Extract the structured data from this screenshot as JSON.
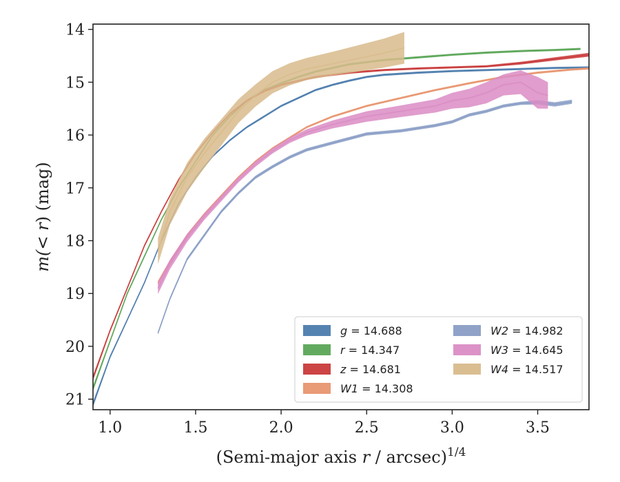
{
  "chart_data": {
    "type": "line",
    "xlabel_main": "(Semi-major axis ",
    "xlabel_var": "r",
    "xlabel_tail": " / arcsec)",
    "xlabel_sup": "1/4",
    "ylabel_pre": "m(",
    "ylabel_var": "< r",
    "ylabel_post": ") (mag)",
    "xlim": [
      0.9,
      3.8
    ],
    "ylim": [
      21.2,
      13.9
    ],
    "y_inverted": true,
    "xticks": [
      1.0,
      1.5,
      2.0,
      2.5,
      3.0,
      3.5
    ],
    "xtick_labels": [
      "1.0",
      "1.5",
      "2.0",
      "2.5",
      "3.0",
      "3.5"
    ],
    "yticks": [
      14,
      15,
      16,
      17,
      18,
      19,
      20,
      21
    ],
    "ytick_labels": [
      "14",
      "15",
      "16",
      "17",
      "18",
      "19",
      "20",
      "21"
    ],
    "grid": false,
    "legend_position": "lower-right",
    "legend_columns": 2,
    "series": [
      {
        "name": "g",
        "legend_var": "g",
        "legend_value": "= 14.688",
        "color": "#4c7cad",
        "x": [
          0.9,
          1.0,
          1.1,
          1.2,
          1.3,
          1.4,
          1.5,
          1.6,
          1.7,
          1.8,
          1.9,
          2.0,
          2.1,
          2.2,
          2.3,
          2.4,
          2.5,
          2.6,
          2.8,
          3.0,
          3.2,
          3.4,
          3.6,
          3.8
        ],
        "y": [
          21.1,
          20.2,
          19.5,
          18.8,
          18.0,
          17.3,
          16.8,
          16.4,
          16.1,
          15.85,
          15.65,
          15.45,
          15.3,
          15.15,
          15.05,
          14.97,
          14.9,
          14.86,
          14.82,
          14.79,
          14.77,
          14.75,
          14.73,
          14.72
        ],
        "width": [
          0.1,
          0.06,
          0.05,
          0.05,
          0.04,
          0.04,
          0.04,
          0.04,
          0.04,
          0.04,
          0.04,
          0.04,
          0.04,
          0.04,
          0.04,
          0.04,
          0.04,
          0.04,
          0.04,
          0.04,
          0.04,
          0.04,
          0.04,
          0.04
        ]
      },
      {
        "name": "r",
        "legend_var": "r",
        "legend_value": "= 14.347",
        "color": "#5aa556",
        "x": [
          0.9,
          1.0,
          1.1,
          1.2,
          1.3,
          1.4,
          1.5,
          1.6,
          1.7,
          1.8,
          1.9,
          2.0,
          2.1,
          2.2,
          2.4,
          2.6,
          2.8,
          3.0,
          3.2,
          3.4,
          3.6,
          3.75
        ],
        "y": [
          20.8,
          19.9,
          19.0,
          18.3,
          17.6,
          17.0,
          16.5,
          16.0,
          15.65,
          15.35,
          15.15,
          15.02,
          14.9,
          14.8,
          14.66,
          14.58,
          14.53,
          14.48,
          14.44,
          14.41,
          14.39,
          14.37
        ],
        "width": [
          0.1,
          0.06,
          0.05,
          0.05,
          0.04,
          0.04,
          0.04,
          0.04,
          0.04,
          0.04,
          0.04,
          0.04,
          0.04,
          0.04,
          0.04,
          0.04,
          0.04,
          0.04,
          0.04,
          0.04,
          0.04,
          0.04
        ]
      },
      {
        "name": "z",
        "legend_var": "z",
        "legend_value": "= 14.681",
        "color": "#c93a3a",
        "x": [
          0.9,
          1.0,
          1.1,
          1.2,
          1.3,
          1.4,
          1.5,
          1.6,
          1.7,
          1.8,
          1.9,
          2.0,
          2.2,
          2.4,
          2.6,
          2.8,
          3.0,
          3.2,
          3.4,
          3.6,
          3.8
        ],
        "y": [
          20.6,
          19.7,
          18.9,
          18.1,
          17.45,
          16.85,
          16.35,
          15.95,
          15.6,
          15.35,
          15.17,
          15.05,
          14.9,
          14.82,
          14.77,
          14.74,
          14.72,
          14.7,
          14.64,
          14.56,
          14.48
        ],
        "width": [
          0.1,
          0.06,
          0.05,
          0.05,
          0.04,
          0.04,
          0.04,
          0.04,
          0.04,
          0.04,
          0.04,
          0.04,
          0.04,
          0.04,
          0.04,
          0.04,
          0.04,
          0.04,
          0.05,
          0.06,
          0.07
        ]
      },
      {
        "name": "W1",
        "legend_var": "W1",
        "legend_value": "= 14.308",
        "color": "#e8956f",
        "x": [
          1.28,
          1.35,
          1.45,
          1.55,
          1.65,
          1.75,
          1.85,
          1.95,
          2.05,
          2.15,
          2.3,
          2.5,
          2.7,
          2.9,
          3.1,
          3.3,
          3.5,
          3.7,
          3.8
        ],
        "y": [
          18.8,
          18.4,
          17.9,
          17.5,
          17.15,
          16.8,
          16.5,
          16.25,
          16.05,
          15.85,
          15.65,
          15.45,
          15.3,
          15.15,
          15.02,
          14.9,
          14.82,
          14.76,
          14.74
        ],
        "width": [
          0.08,
          0.07,
          0.06,
          0.05,
          0.05,
          0.04,
          0.04,
          0.04,
          0.04,
          0.04,
          0.04,
          0.04,
          0.04,
          0.04,
          0.04,
          0.04,
          0.04,
          0.04,
          0.04
        ]
      },
      {
        "name": "W2",
        "legend_var": "W2",
        "legend_value": "= 14.982",
        "color": "#8a9dc5",
        "x": [
          1.28,
          1.35,
          1.45,
          1.55,
          1.65,
          1.75,
          1.85,
          1.95,
          2.05,
          2.15,
          2.3,
          2.5,
          2.7,
          2.9,
          3.0,
          3.1,
          3.2,
          3.3,
          3.4,
          3.5,
          3.6,
          3.7
        ],
        "y": [
          19.75,
          19.1,
          18.35,
          17.9,
          17.45,
          17.1,
          16.8,
          16.6,
          16.42,
          16.28,
          16.15,
          15.98,
          15.92,
          15.82,
          15.75,
          15.62,
          15.55,
          15.45,
          15.4,
          15.38,
          15.42,
          15.37
        ],
        "width": [
          0.06,
          0.06,
          0.06,
          0.06,
          0.06,
          0.06,
          0.06,
          0.06,
          0.06,
          0.06,
          0.06,
          0.06,
          0.06,
          0.06,
          0.06,
          0.06,
          0.06,
          0.06,
          0.06,
          0.08,
          0.08,
          0.08
        ]
      },
      {
        "name": "W3",
        "legend_var": "W3",
        "legend_value": "= 14.645",
        "color": "#da8cc4",
        "x": [
          1.28,
          1.35,
          1.45,
          1.55,
          1.65,
          1.75,
          1.85,
          1.95,
          2.05,
          2.15,
          2.3,
          2.5,
          2.7,
          2.9,
          3.0,
          3.1,
          3.2,
          3.3,
          3.4,
          3.5,
          3.56
        ],
        "y": [
          18.9,
          18.45,
          17.95,
          17.55,
          17.2,
          16.85,
          16.55,
          16.3,
          16.1,
          15.95,
          15.8,
          15.65,
          15.55,
          15.45,
          15.35,
          15.3,
          15.2,
          15.05,
          15.0,
          15.2,
          15.25
        ],
        "width": [
          0.22,
          0.18,
          0.15,
          0.12,
          0.11,
          0.1,
          0.1,
          0.1,
          0.1,
          0.12,
          0.15,
          0.2,
          0.22,
          0.25,
          0.3,
          0.35,
          0.4,
          0.4,
          0.45,
          0.6,
          0.5
        ]
      },
      {
        "name": "W4",
        "legend_var": "W4",
        "legend_value": "= 14.517",
        "color": "#d8bb8c",
        "x": [
          1.28,
          1.35,
          1.45,
          1.55,
          1.65,
          1.75,
          1.85,
          1.95,
          2.05,
          2.15,
          2.3,
          2.45,
          2.6,
          2.72
        ],
        "y": [
          18.2,
          17.45,
          16.8,
          16.35,
          15.95,
          15.55,
          15.25,
          15.0,
          14.85,
          14.75,
          14.65,
          14.55,
          14.45,
          14.35
        ],
        "width": [
          0.5,
          0.5,
          0.55,
          0.55,
          0.5,
          0.45,
          0.42,
          0.42,
          0.42,
          0.42,
          0.45,
          0.5,
          0.55,
          0.6
        ]
      }
    ]
  }
}
